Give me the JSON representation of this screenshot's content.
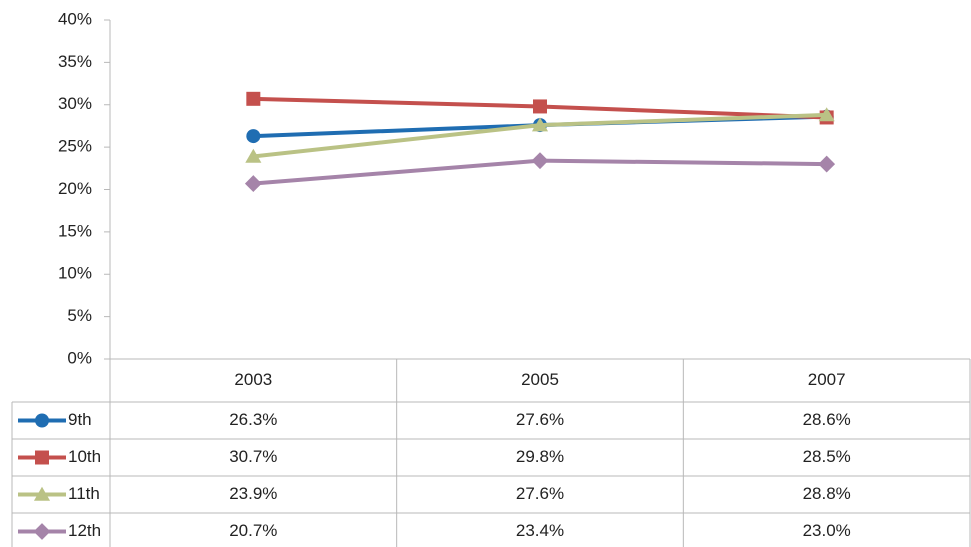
{
  "chart_data": {
    "type": "line",
    "categories": [
      "2003",
      "2005",
      "2007"
    ],
    "series": [
      {
        "name": "9th",
        "color": "#1f6db2",
        "marker": "circle",
        "values": [
          26.3,
          27.6,
          28.6
        ],
        "value_labels": [
          "26.3%",
          "27.6%",
          "28.6%"
        ]
      },
      {
        "name": "10th",
        "color": "#c4504d",
        "marker": "square",
        "values": [
          30.7,
          29.8,
          28.5
        ],
        "value_labels": [
          "30.7%",
          "29.8%",
          "28.5%"
        ]
      },
      {
        "name": "11th",
        "color": "#bac285",
        "marker": "triangle",
        "values": [
          23.9,
          27.6,
          28.8
        ],
        "value_labels": [
          "23.9%",
          "27.6%",
          "28.8%"
        ]
      },
      {
        "name": "12th",
        "color": "#a584a9",
        "marker": "diamond",
        "values": [
          20.7,
          23.4,
          23.0
        ],
        "value_labels": [
          "20.7%",
          "23.4%",
          "23.0%"
        ]
      }
    ],
    "ylim": [
      0,
      40
    ],
    "yticks": [
      {
        "value": 0,
        "label": "0%"
      },
      {
        "value": 5,
        "label": "5%"
      },
      {
        "value": 10,
        "label": "10%"
      },
      {
        "value": 15,
        "label": "15%"
      },
      {
        "value": 20,
        "label": "20%"
      },
      {
        "value": 25,
        "label": "25%"
      },
      {
        "value": 30,
        "label": "30%"
      },
      {
        "value": 35,
        "label": "35%"
      },
      {
        "value": 40,
        "label": "40%"
      }
    ],
    "grid": false
  }
}
